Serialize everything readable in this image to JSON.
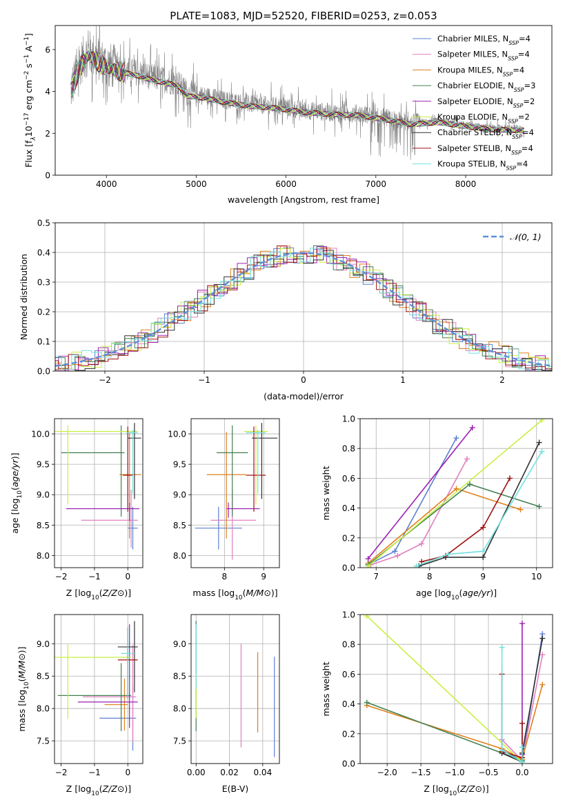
{
  "chart_data": [
    {
      "id": "spectrum",
      "type": "line",
      "title": "PLATE=1083, MJD=52520, FIBERID=0253, z=0.053",
      "xlabel": "wavelength [Angstrom, rest frame]",
      "ylabel": "Flux [f_λ 10^-17 erg cm^-2 s^-1 A^-1]",
      "ylabel_parts": [
        "Flux [f",
        "λ",
        "10",
        "−17",
        " erg cm",
        "−2",
        " s",
        "−1",
        " A",
        "−1",
        "]"
      ],
      "xlim": [
        3430,
        8960
      ],
      "ylim": [
        0,
        7.15
      ],
      "xticks": [
        4000,
        5000,
        6000,
        7000,
        8000
      ],
      "yticks": [
        0,
        2,
        4,
        6
      ],
      "grid": false,
      "legend_position": "upper right",
      "data_color": "#808080",
      "data_knots": {
        "x": [
          3600,
          3700,
          3800,
          3900,
          4000,
          4150,
          4350,
          4500,
          4800,
          4900,
          5100,
          5300,
          5600,
          5900,
          6200,
          6500,
          6800,
          7100,
          7400,
          7700,
          8000,
          8300,
          8650
        ],
        "y": [
          4.0,
          5.3,
          5.9,
          5.6,
          5.3,
          5.1,
          4.9,
          4.7,
          4.4,
          3.9,
          3.8,
          3.6,
          3.4,
          3.3,
          3.1,
          3.0,
          2.95,
          2.75,
          2.5,
          2.6,
          2.4,
          2.25,
          2.2
        ]
      },
      "series": [
        {
          "name": "Chabrier MILES",
          "nssp": "4",
          "color": "#5b7fd1"
        },
        {
          "name": "Salpeter MILES",
          "nssp": "4",
          "color": "#e07fbf"
        },
        {
          "name": "Kroupa MILES",
          "nssp": "4",
          "color": "#e07f1a"
        },
        {
          "name": "Chabrier ELODIE",
          "nssp": "3",
          "color": "#3f7f4f"
        },
        {
          "name": "Salpeter ELODIE",
          "nssp": "2",
          "color": "#9b20b0"
        },
        {
          "name": "Kroupa ELODIE",
          "nssp": "2",
          "color": "#c8f040"
        },
        {
          "name": "Chabrier STELIB",
          "nssp": "4",
          "color": "#303030"
        },
        {
          "name": "Salpeter STELIB",
          "nssp": "4",
          "color": "#a01010"
        },
        {
          "name": "Kroupa STELIB",
          "nssp": "4",
          "color": "#70e0e0"
        }
      ]
    },
    {
      "id": "residuals",
      "type": "line",
      "xlabel": "(data-model)/error",
      "ylabel": "Normed distribution",
      "xlim": [
        -2.5,
        2.5
      ],
      "ylim": [
        0,
        0.5
      ],
      "xticks": [
        -2,
        -1,
        0,
        1,
        2
      ],
      "yticks": [
        0.0,
        0.1,
        0.2,
        0.3,
        0.4,
        0.5
      ],
      "grid": true,
      "legend": "𝒩(0, 1)",
      "legend_position": "upper right",
      "gaussian": {
        "mu": 0,
        "sigma": 1,
        "color": "#5b8fd8"
      }
    },
    {
      "id": "z-age",
      "type": "scatter",
      "xlabel": "Z [log10(Z/Z⊙)]",
      "ylabel": "age [log10(age/yr)]",
      "xlim": [
        -2.2,
        0.45
      ],
      "ylim": [
        7.8,
        10.25
      ],
      "xticks": [
        -2,
        -1,
        0
      ],
      "yticks": [
        8.0,
        8.5,
        9.0,
        9.5,
        10.0
      ],
      "grid": true,
      "points": [
        {
          "color": "#5b7fd1",
          "x": 0.15,
          "xerr": [
            0.15,
            0.15
          ],
          "y": 8.45,
          "yerr": [
            0.35,
            0.35
          ]
        },
        {
          "color": "#e07fbf",
          "x": 0.1,
          "xerr": [
            1.5,
            0.2
          ],
          "y": 8.58,
          "yerr": [
            0.45,
            0.5
          ]
        },
        {
          "color": "#e07f1a",
          "x": 0.05,
          "xerr": [
            0.3,
            0.35
          ],
          "y": 9.33,
          "yerr": [
            1.05,
            0.7
          ]
        },
        {
          "color": "#3f7f4f",
          "x": -0.2,
          "xerr": [
            1.8,
            0.1
          ],
          "y": 9.69,
          "yerr": [
            1.05,
            0.45
          ]
        },
        {
          "color": "#9b20b0",
          "x": 0.05,
          "xerr": [
            1.9,
            0.3
          ],
          "y": 8.77,
          "yerr": [
            0.2,
            0.1
          ]
        },
        {
          "color": "#c8f040",
          "x": -1.8,
          "xerr": [
            0.4,
            2.1
          ],
          "y": 10.04,
          "yerr": [
            1.2,
            0.1
          ]
        },
        {
          "color": "#303030",
          "x": 0.2,
          "xerr": [
            0.2,
            0.2
          ],
          "y": 9.93,
          "yerr": [
            1.0,
            0.25
          ]
        },
        {
          "color": "#a01010",
          "x": 0.0,
          "xerr": [
            0.15,
            0.15
          ],
          "y": 9.32,
          "yerr": [
            0.6,
            0.8
          ]
        },
        {
          "color": "#70e0e0",
          "x": 0.15,
          "xerr": [
            0.2,
            0.15
          ],
          "y": 10.02,
          "yerr": [
            1.0,
            0.05
          ]
        }
      ]
    },
    {
      "id": "mass-age",
      "type": "scatter",
      "xlabel": "mass [log10(M/M⊙)]",
      "ylabel": "",
      "xlim": [
        7.15,
        9.4
      ],
      "ylim": [
        7.8,
        10.25
      ],
      "xticks": [
        8,
        9
      ],
      "yticks": [
        8.0,
        8.5,
        9.0,
        9.5,
        10.0
      ],
      "grid": true,
      "points": [
        {
          "color": "#5b7fd1",
          "x": 7.85,
          "xerr": [
            0.6,
            0.6
          ],
          "y": 8.45,
          "yerr": [
            0.35,
            0.35
          ]
        },
        {
          "color": "#e07fbf",
          "x": 8.2,
          "xerr": [
            0.55,
            0.6
          ],
          "y": 8.58,
          "yerr": [
            0.65,
            0.5
          ]
        },
        {
          "color": "#e07f1a",
          "x": 8.05,
          "xerr": [
            0.5,
            0.5
          ],
          "y": 9.33,
          "yerr": [
            1.05,
            0.7
          ]
        },
        {
          "color": "#3f7f4f",
          "x": 8.2,
          "xerr": [
            0.4,
            0.4
          ],
          "y": 9.69,
          "yerr": [
            1.05,
            0.45
          ]
        },
        {
          "color": "#9b20b0",
          "x": 8.1,
          "xerr": [
            0.05,
            0.8
          ],
          "y": 8.77,
          "yerr": [
            0.15,
            0.1
          ]
        },
        {
          "color": "#c8f040",
          "x": 8.8,
          "xerr": [
            0.3,
            0.3
          ],
          "y": 10.04,
          "yerr": [
            1.2,
            0.1
          ]
        },
        {
          "color": "#303030",
          "x": 8.95,
          "xerr": [
            0.25,
            0.4
          ],
          "y": 9.93,
          "yerr": [
            1.0,
            0.25
          ]
        },
        {
          "color": "#a01010",
          "x": 8.75,
          "xerr": [
            0.2,
            0.3
          ],
          "y": 9.32,
          "yerr": [
            0.6,
            0.8
          ]
        },
        {
          "color": "#70e0e0",
          "x": 8.85,
          "xerr": [
            0.3,
            0.2
          ],
          "y": 10.02,
          "yerr": [
            1.0,
            0.05
          ]
        }
      ]
    },
    {
      "id": "age-weight",
      "type": "line",
      "xlabel": "age [log10(age/yr)]",
      "ylabel": "mass weight",
      "xlim": [
        6.7,
        10.3
      ],
      "ylim": [
        0,
        1.0
      ],
      "xticks": [
        7,
        8,
        9,
        10
      ],
      "yticks": [
        0.0,
        0.2,
        0.4,
        0.6,
        0.8,
        1.0
      ],
      "grid": true,
      "series": [
        {
          "color": "#5b7fd1",
          "x": [
            6.85,
            7.35,
            8.5
          ],
          "y": [
            0.02,
            0.11,
            0.87
          ]
        },
        {
          "color": "#e07fbf",
          "x": [
            6.9,
            7.4,
            7.85,
            8.7
          ],
          "y": [
            0.02,
            0.08,
            0.16,
            0.73
          ]
        },
        {
          "color": "#e07f1a",
          "x": [
            6.85,
            8.5,
            9.7
          ],
          "y": [
            0.03,
            0.53,
            0.39
          ]
        },
        {
          "color": "#3f7f4f",
          "x": [
            6.85,
            8.75,
            10.05
          ],
          "y": [
            0.02,
            0.56,
            0.41
          ]
        },
        {
          "color": "#9b20b0",
          "x": [
            6.85,
            8.8
          ],
          "y": [
            0.06,
            0.94
          ]
        },
        {
          "color": "#c8f040",
          "x": [
            6.85,
            10.1
          ],
          "y": [
            0.01,
            0.99
          ]
        },
        {
          "color": "#303030",
          "x": [
            7.8,
            8.3,
            9.0,
            10.05
          ],
          "y": [
            0.01,
            0.07,
            0.07,
            0.84
          ]
        },
        {
          "color": "#a01010",
          "x": [
            7.85,
            8.3,
            9.0,
            9.5
          ],
          "y": [
            0.04,
            0.08,
            0.27,
            0.6
          ]
        },
        {
          "color": "#70e0e0",
          "x": [
            7.75,
            8.35,
            9.0,
            10.1
          ],
          "y": [
            0.01,
            0.09,
            0.11,
            0.78
          ]
        }
      ]
    },
    {
      "id": "z-mass",
      "type": "scatter",
      "xlabel": "Z [log10(Z/Z⊙)]",
      "ylabel": "mass [log10(M/M⊙)]",
      "xlim": [
        -2.2,
        0.45
      ],
      "ylim": [
        7.15,
        9.45
      ],
      "xticks": [
        -2,
        -1,
        0
      ],
      "yticks": [
        7.5,
        8.0,
        8.5,
        9.0
      ],
      "grid": true,
      "points": [
        {
          "color": "#5b7fd1",
          "x": 0.15,
          "xerr": [
            1.0,
            0.1
          ],
          "y": 7.85,
          "yerr": [
            0.5,
            0.5
          ]
        },
        {
          "color": "#e07fbf",
          "x": 0.15,
          "xerr": [
            1.5,
            0.1
          ],
          "y": 8.18,
          "yerr": [
            0.7,
            0.8
          ]
        },
        {
          "color": "#e07f1a",
          "x": -0.1,
          "xerr": [
            0.6,
            0.1
          ],
          "y": 8.06,
          "yerr": [
            0.4,
            0.4
          ]
        },
        {
          "color": "#3f7f4f",
          "x": -0.2,
          "xerr": [
            1.9,
            0.3
          ],
          "y": 8.2,
          "yerr": [
            0.55,
            0.5
          ]
        },
        {
          "color": "#9b20b0",
          "x": 0.05,
          "xerr": [
            1.55,
            0.25
          ],
          "y": 8.1,
          "yerr": [
            0.4,
            1.2
          ]
        },
        {
          "color": "#c8f040",
          "x": -1.8,
          "xerr": [
            0.4,
            1.9
          ],
          "y": 8.79,
          "yerr": [
            0.95,
            0.2
          ]
        },
        {
          "color": "#303030",
          "x": 0.2,
          "xerr": [
            0.5,
            0.1
          ],
          "y": 8.95,
          "yerr": [
            0.7,
            0.4
          ]
        },
        {
          "color": "#a01010",
          "x": 0.0,
          "xerr": [
            0.3,
            0.3
          ],
          "y": 8.75,
          "yerr": [
            0.6,
            0.5
          ]
        },
        {
          "color": "#70e0e0",
          "x": 0.0,
          "xerr": [
            0.2,
            0.2
          ],
          "y": 8.85,
          "yerr": [
            0.7,
            0.4
          ]
        }
      ]
    },
    {
      "id": "ebv-mass",
      "type": "scatter",
      "xlabel": "E(B-V)",
      "ylabel": "",
      "xlim": [
        -0.003,
        0.05
      ],
      "ylim": [
        7.15,
        9.45
      ],
      "xticks": [
        0.0,
        0.02,
        0.04
      ],
      "yticks": [
        7.5,
        8.0,
        8.5,
        9.0
      ],
      "grid": true,
      "points": [
        {
          "color": "#5b7fd1",
          "x": 0.047,
          "y": 8.05,
          "yerr": [
            0.8,
            0.75
          ]
        },
        {
          "color": "#e07fbf",
          "x": 0.027,
          "y": 8.2,
          "yerr": [
            0.8,
            0.8
          ]
        },
        {
          "color": "#e07f1a",
          "x": 0.037,
          "y": 8.25,
          "yerr": [
            0.62,
            0.62
          ]
        },
        {
          "color": "#3f7f4f",
          "x": 0.0,
          "y": 8.5,
          "yerr": [
            0.85,
            0.85
          ]
        },
        {
          "color": "#c8f040",
          "x": 0.0,
          "y": 8.2,
          "yerr": [
            0.35,
            0.35
          ]
        },
        {
          "color": "#70e0e0",
          "x": 0.0,
          "y": 8.8,
          "yerr": [
            0.5,
            0.5
          ]
        }
      ]
    },
    {
      "id": "z-weight",
      "type": "line",
      "xlabel": "Z [log10(Z/Z⊙)]",
      "ylabel": "mass weight",
      "xlim": [
        -2.4,
        0.45
      ],
      "ylim": [
        0,
        1.0
      ],
      "xticks": [
        -2.0,
        -1.5,
        -1.0,
        -0.5,
        0.0
      ],
      "yticks": [
        0.0,
        0.2,
        0.4,
        0.6,
        0.8,
        1.0
      ],
      "grid": true,
      "series": [
        {
          "color": "#5b7fd1",
          "x": [
            -0.3,
            0.0,
            0.3
          ],
          "y": [
            0.09,
            0.02,
            0.87
          ]
        },
        {
          "color": "#e07fbf",
          "x": [
            -0.3,
            0.0,
            0.3
          ],
          "y": [
            0.16,
            0.02,
            0.73
          ]
        },
        {
          "color": "#e07f1a",
          "x": [
            -2.3,
            -0.3,
            0.0,
            0.3
          ],
          "y": [
            0.39,
            0.1,
            0.03,
            0.53
          ]
        },
        {
          "color": "#3f7f4f",
          "x": [
            -2.3,
            0.0
          ],
          "y": [
            0.41,
            0.02
          ]
        },
        {
          "color": "#9b20b0",
          "x": [
            0.0,
            0.0
          ],
          "y": [
            0.06,
            0.94
          ]
        },
        {
          "color": "#c8f040",
          "x": [
            -2.3,
            0.0
          ],
          "y": [
            0.99,
            0.01
          ]
        },
        {
          "color": "#303030",
          "x": [
            -0.3,
            0.0,
            0.0,
            0.3
          ],
          "y": [
            0.07,
            0.01,
            0.07,
            0.84
          ]
        },
        {
          "color": "#a01010",
          "x": [
            -0.3,
            -0.3,
            0.0,
            0.0
          ],
          "y": [
            0.6,
            0.08,
            0.04,
            0.27
          ]
        },
        {
          "color": "#70e0e0",
          "x": [
            -0.3,
            -0.3,
            0.0,
            0.0
          ],
          "y": [
            0.78,
            0.09,
            0.01,
            0.11
          ]
        }
      ]
    }
  ]
}
